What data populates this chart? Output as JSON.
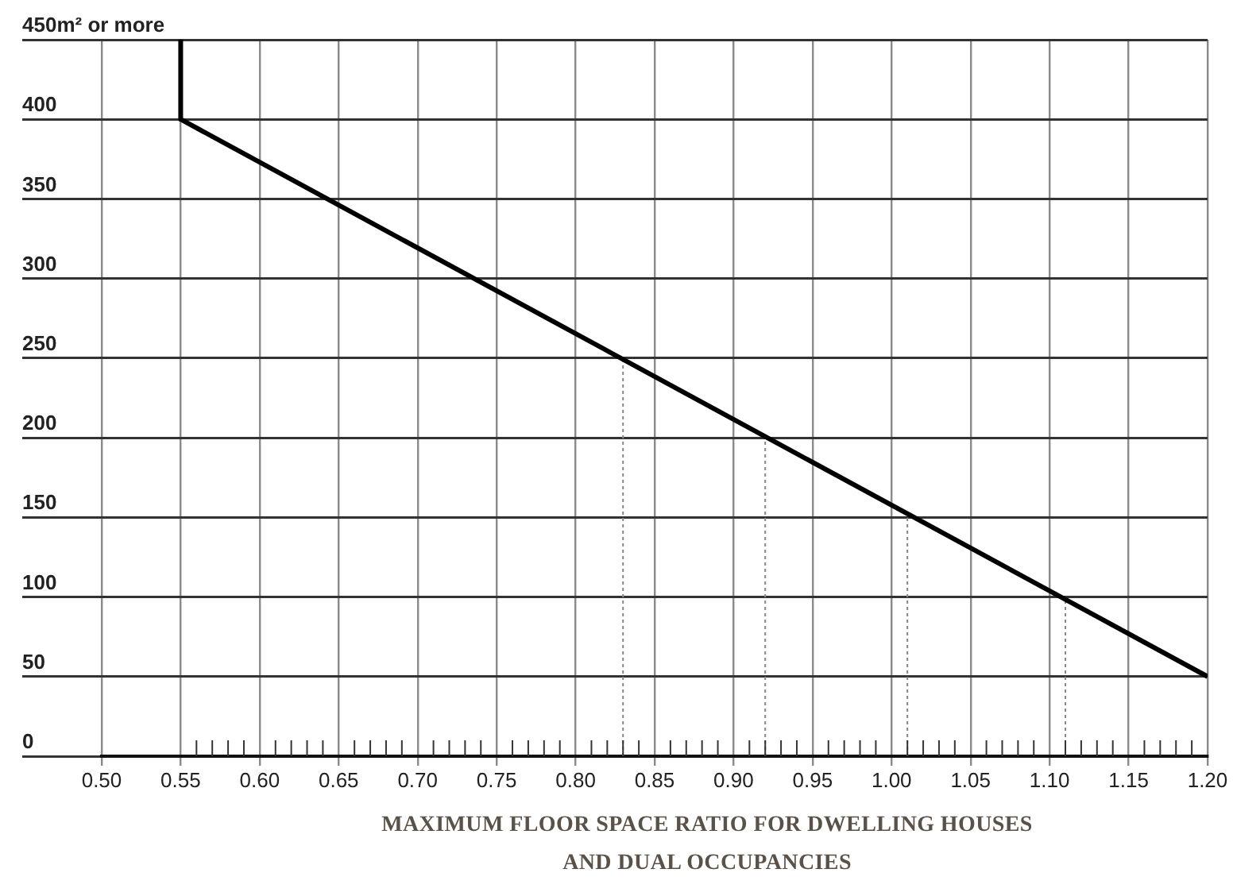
{
  "chart_data": {
    "type": "line",
    "xlabel": "MAXIMUM FLOOR SPACE RATIO FOR DWELLING HOUSES AND DUAL OCCUPANCIES",
    "xlim": [
      0.5,
      1.2
    ],
    "xticks": [
      {
        "value": 0.5,
        "label": "0.50"
      },
      {
        "value": 0.55,
        "label": "0.55"
      },
      {
        "value": 0.56,
        "label": null
      },
      {
        "value": 0.57,
        "label": null
      },
      {
        "value": 0.58,
        "label": null
      },
      {
        "value": 0.59,
        "label": null
      },
      {
        "value": 0.6,
        "label": "0.60"
      },
      {
        "value": 0.61,
        "label": null
      },
      {
        "value": 0.62,
        "label": null
      },
      {
        "value": 0.63,
        "label": null
      },
      {
        "value": 0.64,
        "label": null
      },
      {
        "value": 0.65,
        "label": "0.65"
      },
      {
        "value": 0.66,
        "label": null
      },
      {
        "value": 0.67,
        "label": null
      },
      {
        "value": 0.68,
        "label": null
      },
      {
        "value": 0.69,
        "label": null
      },
      {
        "value": 0.7,
        "label": "0.70"
      },
      {
        "value": 0.71,
        "label": null
      },
      {
        "value": 0.72,
        "label": null
      },
      {
        "value": 0.73,
        "label": null
      },
      {
        "value": 0.74,
        "label": null
      },
      {
        "value": 0.75,
        "label": "0.75"
      },
      {
        "value": 0.76,
        "label": null
      },
      {
        "value": 0.77,
        "label": null
      },
      {
        "value": 0.78,
        "label": null
      },
      {
        "value": 0.79,
        "label": null
      },
      {
        "value": 0.8,
        "label": "0.80"
      },
      {
        "value": 0.81,
        "label": null
      },
      {
        "value": 0.82,
        "label": null
      },
      {
        "value": 0.83,
        "label": null
      },
      {
        "value": 0.84,
        "label": null
      },
      {
        "value": 0.85,
        "label": "0.85"
      },
      {
        "value": 0.86,
        "label": null
      },
      {
        "value": 0.87,
        "label": null
      },
      {
        "value": 0.88,
        "label": null
      },
      {
        "value": 0.89,
        "label": null
      },
      {
        "value": 0.9,
        "label": "0.90"
      },
      {
        "value": 0.91,
        "label": null
      },
      {
        "value": 0.92,
        "label": null
      },
      {
        "value": 0.93,
        "label": null
      },
      {
        "value": 0.94,
        "label": null
      },
      {
        "value": 0.95,
        "label": "0.95"
      },
      {
        "value": 0.96,
        "label": null
      },
      {
        "value": 0.97,
        "label": null
      },
      {
        "value": 0.98,
        "label": null
      },
      {
        "value": 0.99,
        "label": null
      },
      {
        "value": 1.0,
        "label": "1.00"
      },
      {
        "value": 1.01,
        "label": null
      },
      {
        "value": 1.02,
        "label": null
      },
      {
        "value": 1.03,
        "label": null
      },
      {
        "value": 1.04,
        "label": null
      },
      {
        "value": 1.05,
        "label": "1.05"
      },
      {
        "value": 1.06,
        "label": null
      },
      {
        "value": 1.07,
        "label": null
      },
      {
        "value": 1.08,
        "label": null
      },
      {
        "value": 1.09,
        "label": null
      },
      {
        "value": 1.1,
        "label": "1.10"
      },
      {
        "value": 1.11,
        "label": null
      },
      {
        "value": 1.12,
        "label": null
      },
      {
        "value": 1.13,
        "label": null
      },
      {
        "value": 1.14,
        "label": null
      },
      {
        "value": 1.15,
        "label": "1.15"
      },
      {
        "value": 1.16,
        "label": null
      },
      {
        "value": 1.17,
        "label": null
      },
      {
        "value": 1.18,
        "label": null
      },
      {
        "value": 1.19,
        "label": null
      },
      {
        "value": 1.2,
        "label": "1.20"
      }
    ],
    "ylim": [
      0,
      450
    ],
    "yticks": [
      0,
      50,
      100,
      150,
      200,
      250,
      300,
      350,
      400,
      {
        "value": 450,
        "label": "450m² or more"
      }
    ],
    "grid": true,
    "marker": "none",
    "series": [
      {
        "color": "#000000",
        "x": [
          0.55,
          0.55,
          1.2
        ],
        "values": [
          450,
          400,
          50
        ],
        "line_style": "solid"
      },
      {
        "color": "#888888",
        "x": [
          0.83,
          0.83
        ],
        "values": [
          0,
          250
        ],
        "line_style": "dotted"
      },
      {
        "color": "#888888",
        "x": [
          0.92,
          0.92
        ],
        "values": [
          0,
          200
        ],
        "line_style": "dotted"
      },
      {
        "color": "#888888",
        "x": [
          1.01,
          1.01
        ],
        "values": [
          0,
          150
        ],
        "line_style": "dotted"
      },
      {
        "color": "#888888",
        "x": [
          1.11,
          1.11
        ],
        "values": [
          0,
          100
        ],
        "line_style": "dotted"
      }
    ]
  }
}
